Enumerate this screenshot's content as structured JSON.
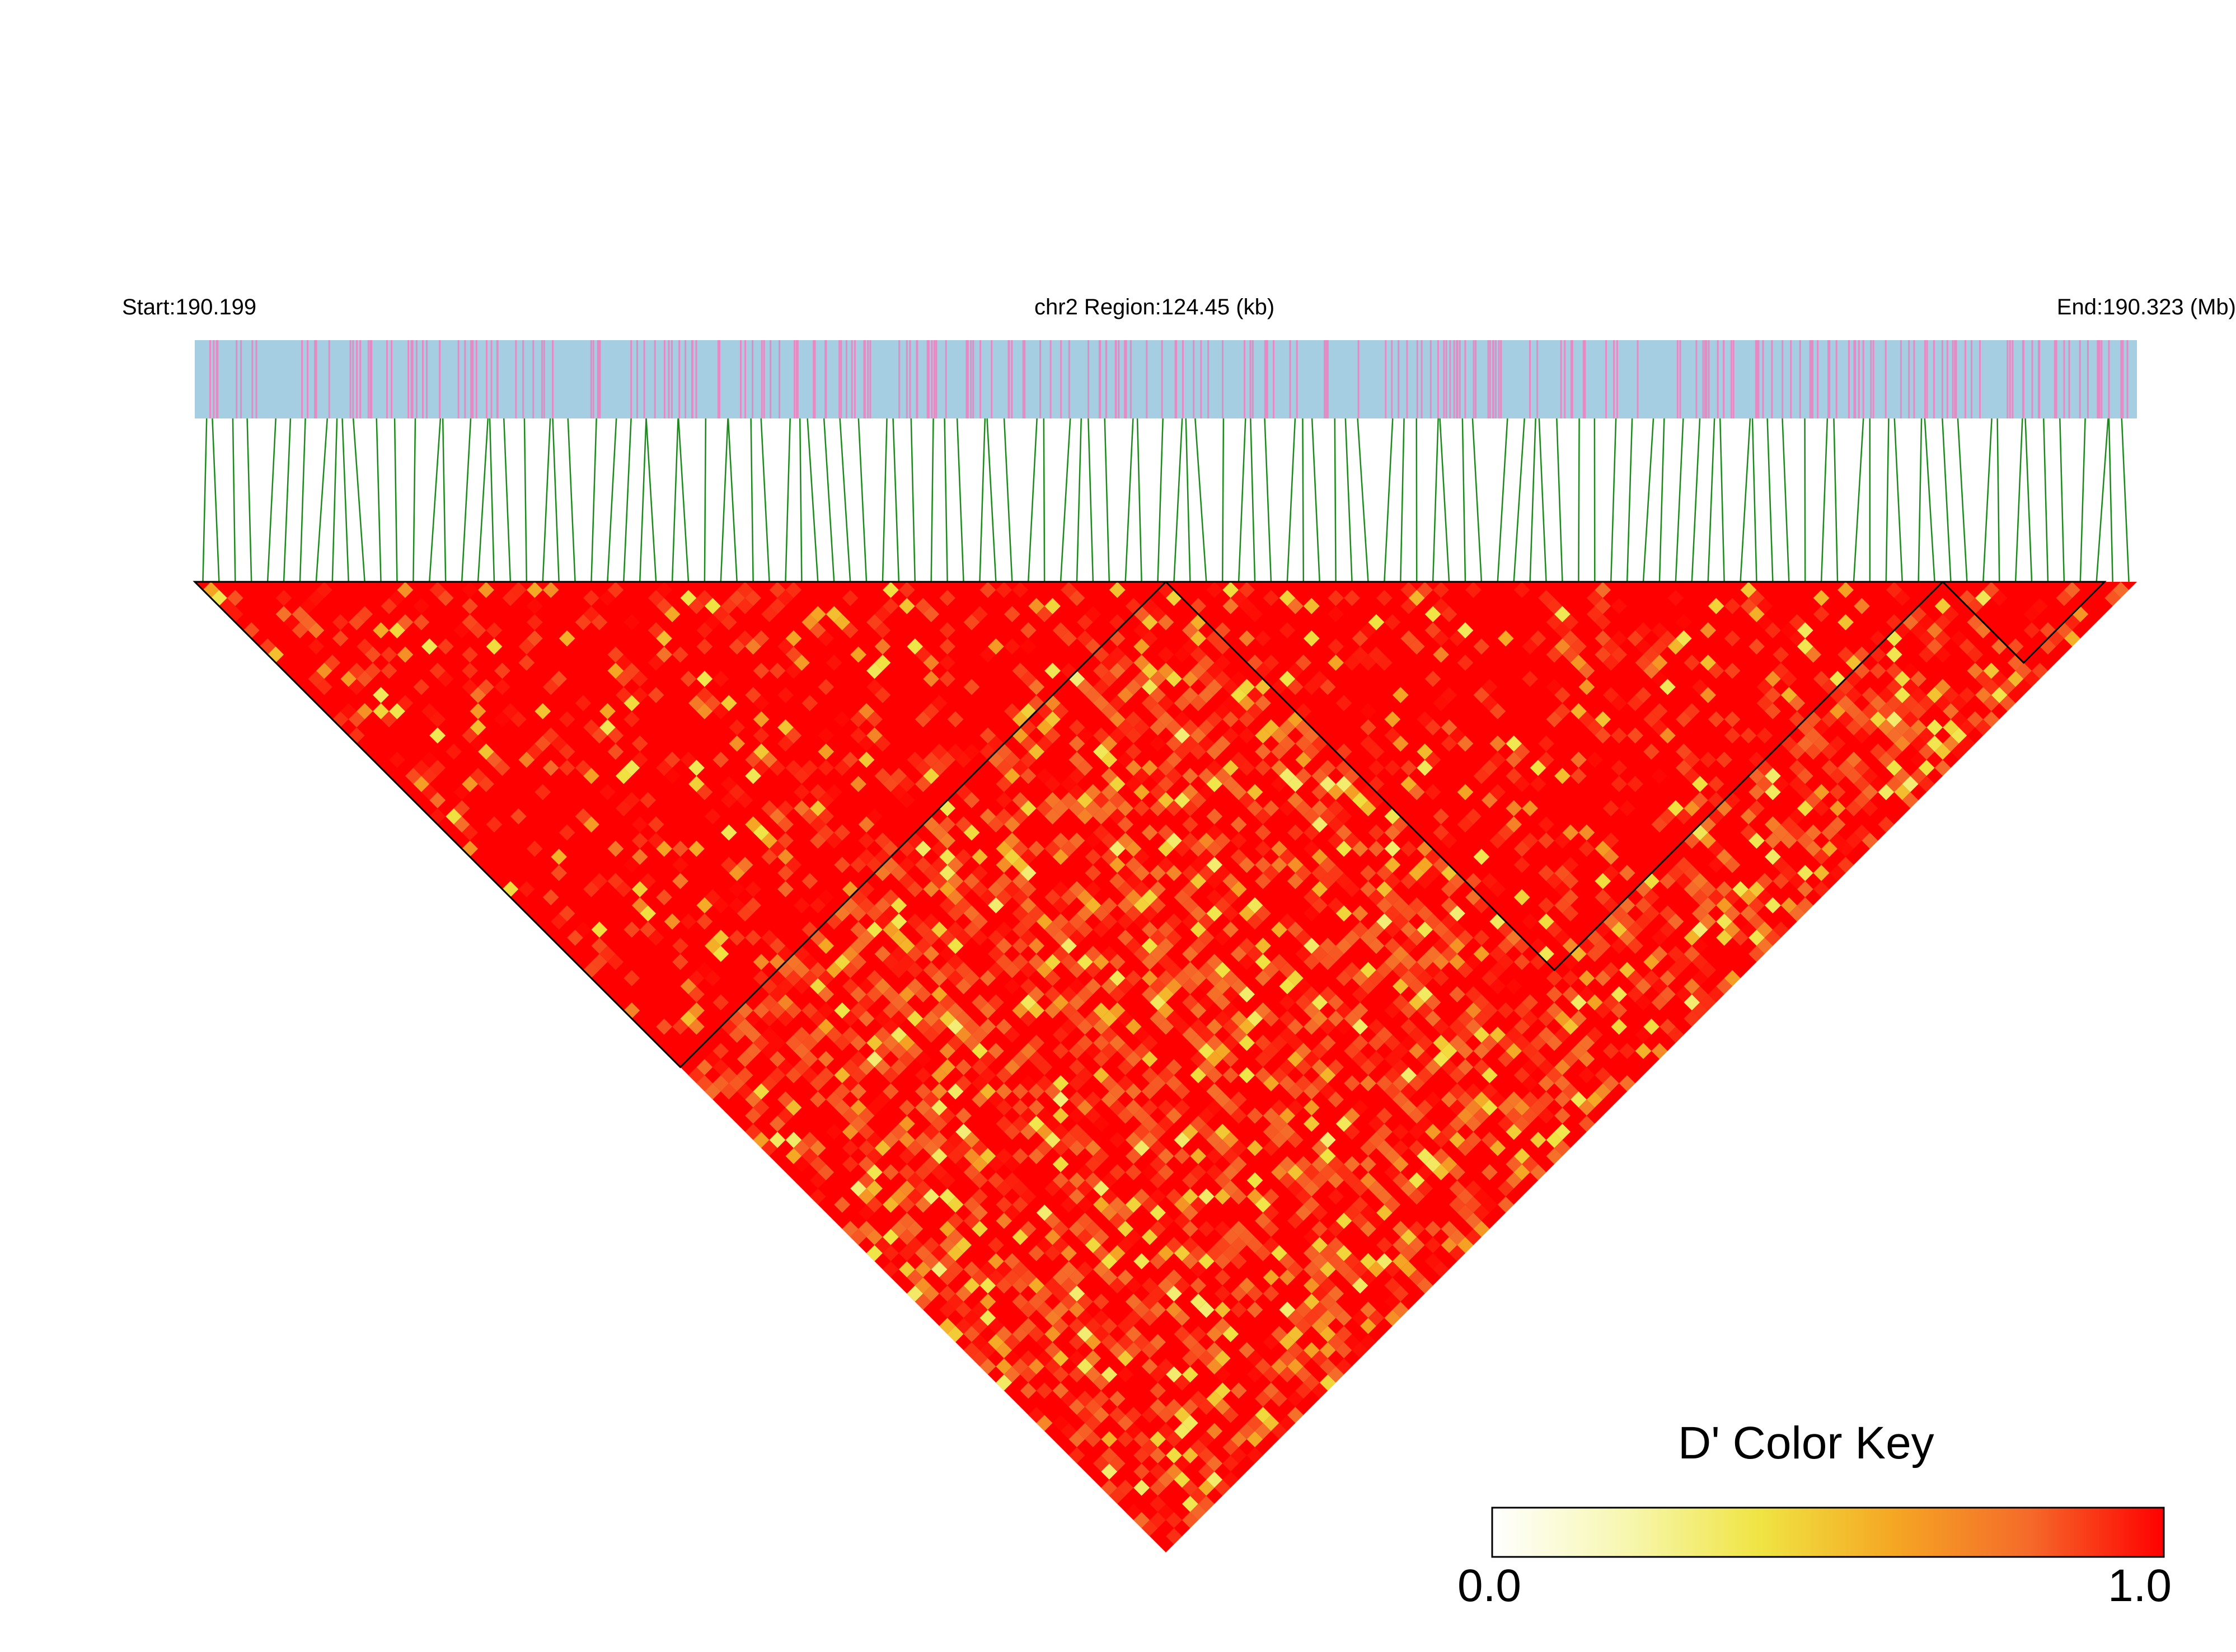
{
  "header": {
    "start_label": "Start:190.199",
    "region_label": "chr2 Region:124.45 (kb)",
    "end_label": "End:190.323 (Mb)"
  },
  "chart_data": {
    "type": "heatmap",
    "title": "",
    "chromosome": "chr2",
    "region_start_mb": 190.199,
    "region_end_mb": 190.323,
    "region_length_kb": 124.45,
    "measure": "D'",
    "color_key": {
      "title": "D' Color Key",
      "min_label": "0.0",
      "max_label": "1.0",
      "range": [
        0,
        1
      ],
      "colors": [
        "#ffffff",
        "#f7f7b0",
        "#f0e442",
        "#f5a623",
        "#f56a2a",
        "#ff0000"
      ]
    },
    "gene_track": {
      "background": "#a6cee3",
      "marker_color": "#e78ac3"
    },
    "snp_connector_color": "#1a8a1a",
    "base_color": "#ff0000",
    "ld_blocks": [
      {
        "start_fraction": 0.0,
        "end_fraction": 0.5
      },
      {
        "start_fraction": 0.5,
        "end_fraction": 0.9
      },
      {
        "start_fraction": 0.9,
        "end_fraction": 0.98
      }
    ]
  }
}
